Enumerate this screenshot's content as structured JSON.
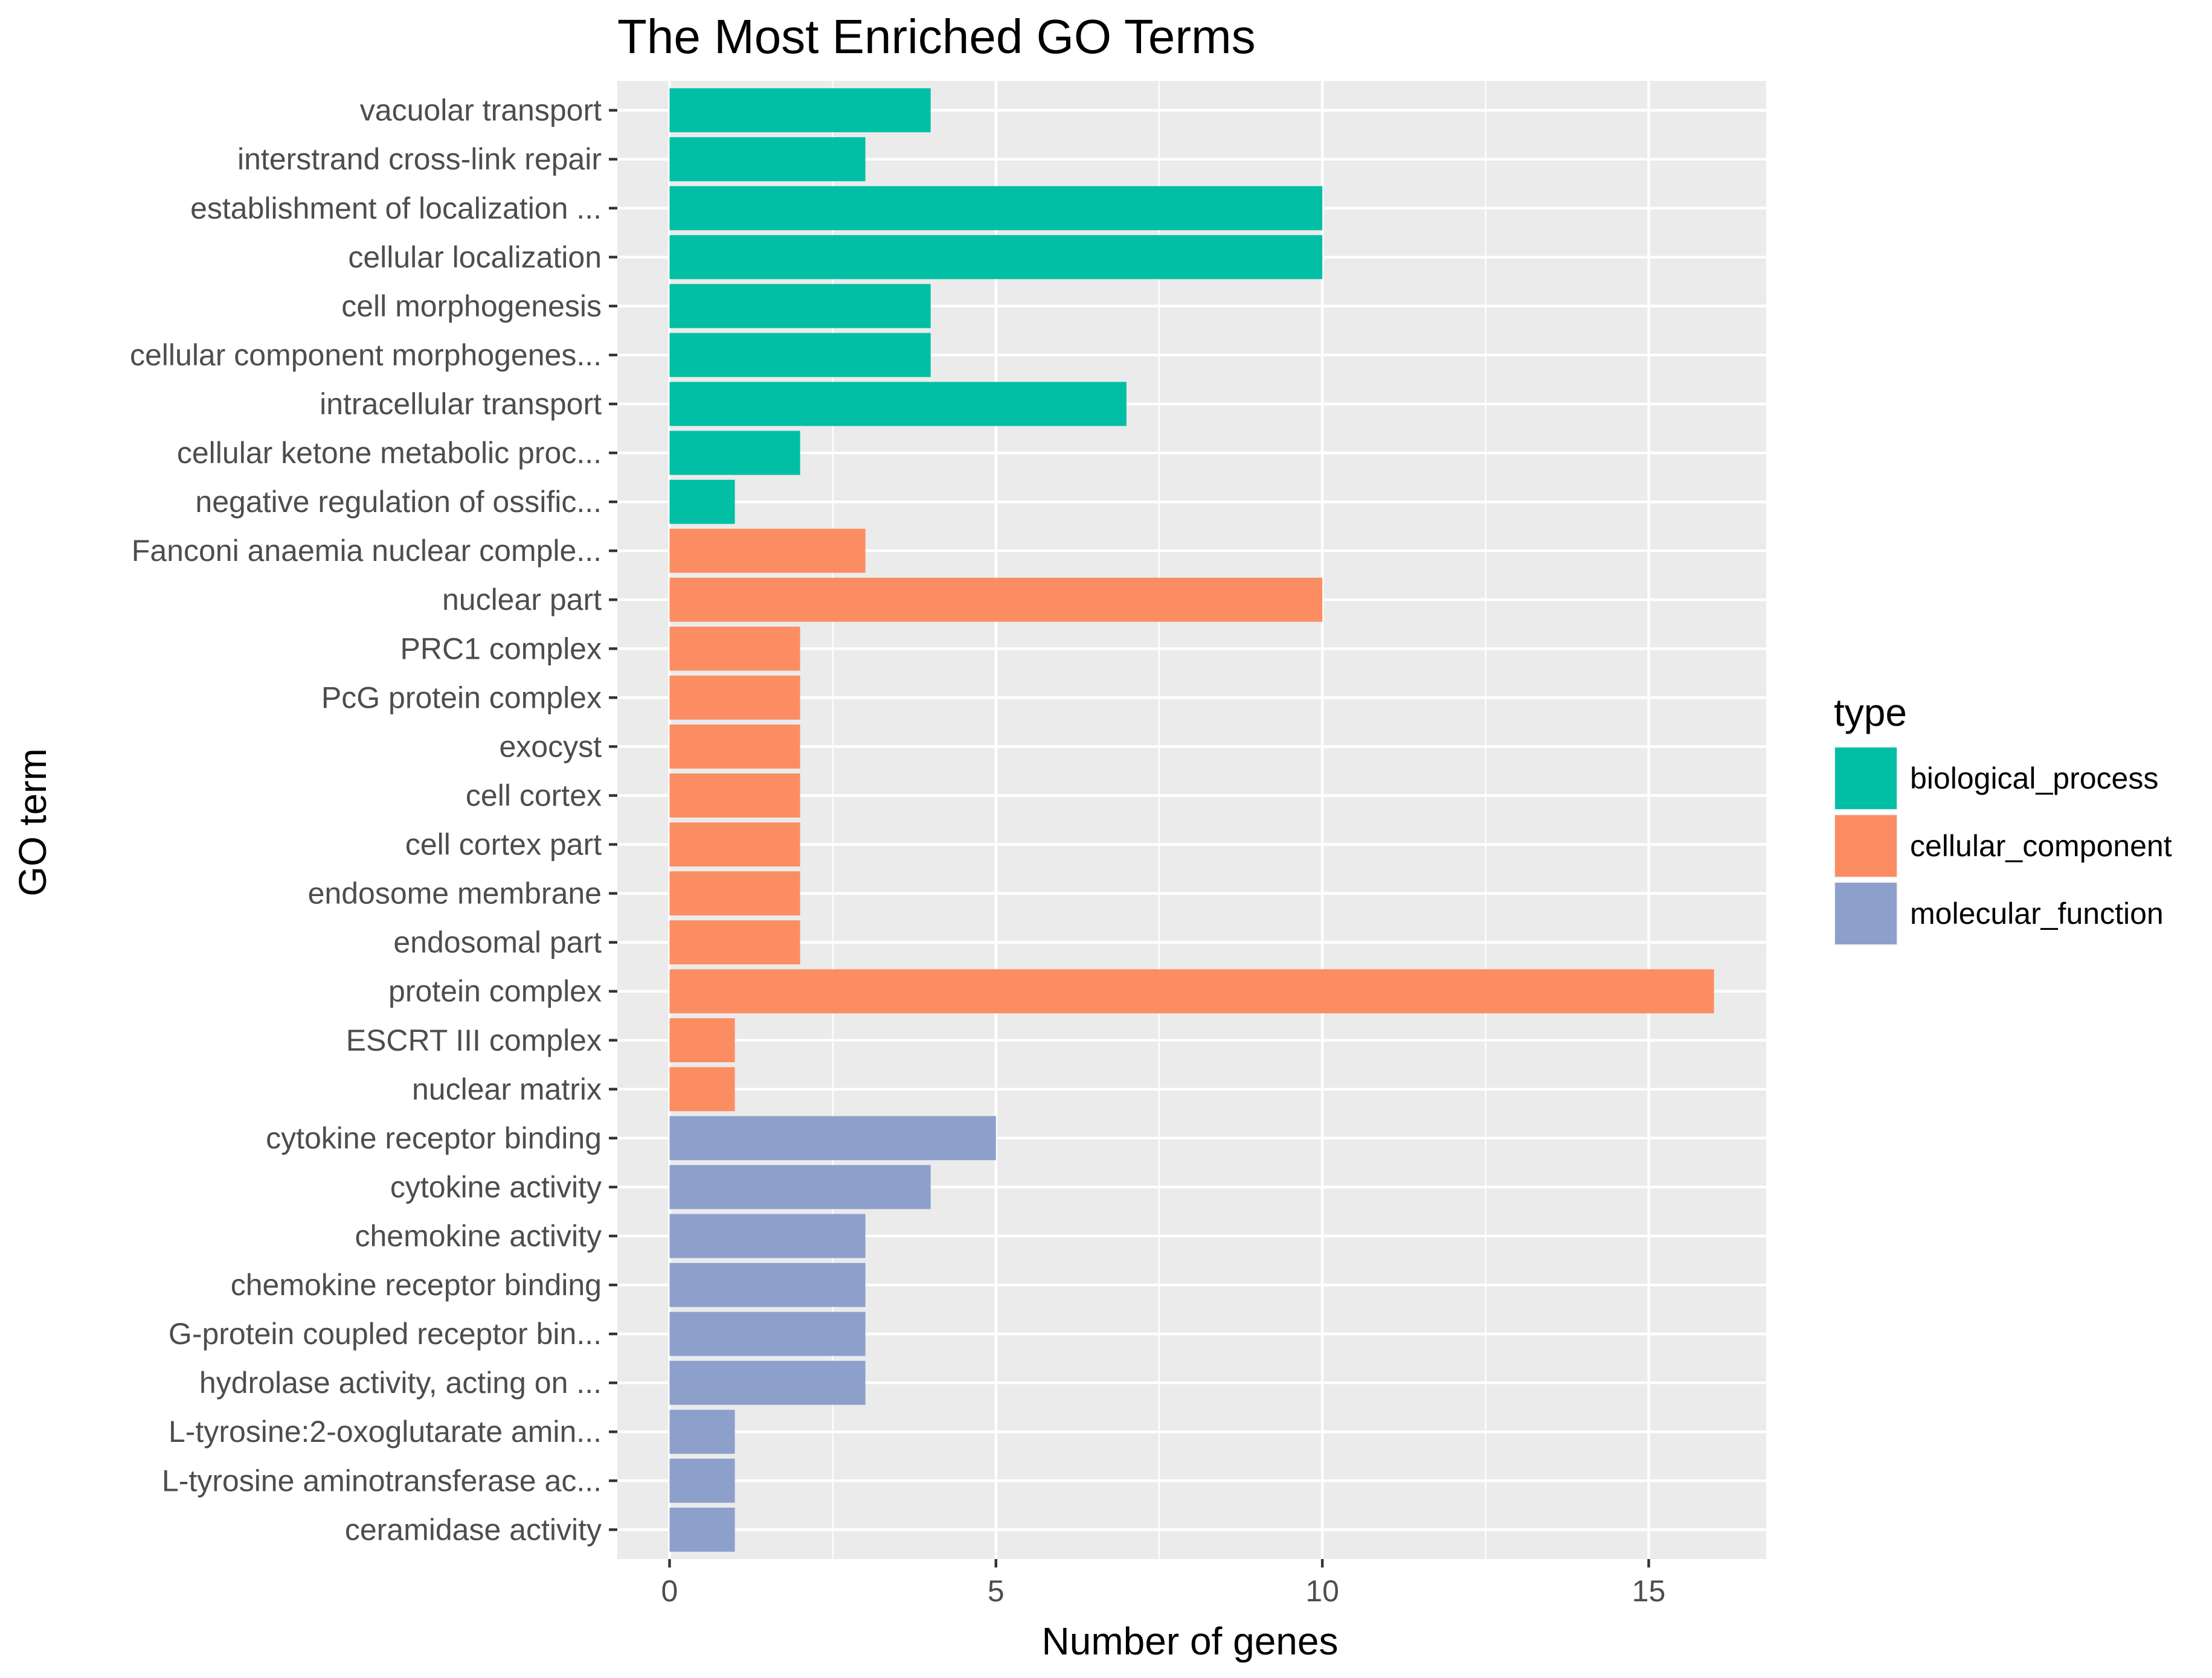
{
  "chart_data": {
    "type": "bar",
    "orientation": "horizontal",
    "title": "The Most Enriched GO Terms",
    "xlabel": "Number of genes",
    "ylabel": "GO term",
    "xlim": [
      -0.8,
      16.8
    ],
    "x_ticks": [
      0,
      5,
      10,
      15
    ],
    "x_tick_labels": [
      "0",
      "5",
      "10",
      "15"
    ],
    "grid": true,
    "legend": {
      "title": "type",
      "placement": "right",
      "entries": [
        {
          "key": "biological_process",
          "label": "biological_process",
          "color": "#00BFA5"
        },
        {
          "key": "cellular_component",
          "label": "cellular_component",
          "color": "#FC8D62"
        },
        {
          "key": "molecular_function",
          "label": "molecular_function",
          "color": "#8DA0CB"
        }
      ]
    },
    "bars": [
      {
        "label": "vacuolar transport",
        "value": 4,
        "type": "biological_process"
      },
      {
        "label": "interstrand cross-link repair",
        "value": 3,
        "type": "biological_process"
      },
      {
        "label": "establishment of localization ...",
        "value": 10,
        "type": "biological_process"
      },
      {
        "label": "cellular localization",
        "value": 10,
        "type": "biological_process"
      },
      {
        "label": "cell morphogenesis",
        "value": 4,
        "type": "biological_process"
      },
      {
        "label": "cellular component morphogenes...",
        "value": 4,
        "type": "biological_process"
      },
      {
        "label": "intracellular transport",
        "value": 7,
        "type": "biological_process"
      },
      {
        "label": "cellular ketone metabolic proc...",
        "value": 2,
        "type": "biological_process"
      },
      {
        "label": "negative regulation of ossific...",
        "value": 1,
        "type": "biological_process"
      },
      {
        "label": "Fanconi anaemia nuclear comple...",
        "value": 3,
        "type": "cellular_component"
      },
      {
        "label": "nuclear part",
        "value": 10,
        "type": "cellular_component"
      },
      {
        "label": "PRC1 complex",
        "value": 2,
        "type": "cellular_component"
      },
      {
        "label": "PcG protein complex",
        "value": 2,
        "type": "cellular_component"
      },
      {
        "label": "exocyst",
        "value": 2,
        "type": "cellular_component"
      },
      {
        "label": "cell cortex",
        "value": 2,
        "type": "cellular_component"
      },
      {
        "label": "cell cortex part",
        "value": 2,
        "type": "cellular_component"
      },
      {
        "label": "endosome membrane",
        "value": 2,
        "type": "cellular_component"
      },
      {
        "label": "endosomal part",
        "value": 2,
        "type": "cellular_component"
      },
      {
        "label": "protein complex",
        "value": 16,
        "type": "cellular_component"
      },
      {
        "label": "ESCRT III complex",
        "value": 1,
        "type": "cellular_component"
      },
      {
        "label": "nuclear matrix",
        "value": 1,
        "type": "cellular_component"
      },
      {
        "label": "cytokine receptor binding",
        "value": 5,
        "type": "molecular_function"
      },
      {
        "label": "cytokine activity",
        "value": 4,
        "type": "molecular_function"
      },
      {
        "label": "chemokine activity",
        "value": 3,
        "type": "molecular_function"
      },
      {
        "label": "chemokine receptor binding",
        "value": 3,
        "type": "molecular_function"
      },
      {
        "label": "G-protein coupled receptor bin...",
        "value": 3,
        "type": "molecular_function"
      },
      {
        "label": "hydrolase activity, acting on ...",
        "value": 3,
        "type": "molecular_function"
      },
      {
        "label": "L-tyrosine:2-oxoglutarate amin...",
        "value": 1,
        "type": "molecular_function"
      },
      {
        "label": "L-tyrosine aminotransferase ac...",
        "value": 1,
        "type": "molecular_function"
      },
      {
        "label": "ceramidase activity",
        "value": 1,
        "type": "molecular_function"
      }
    ],
    "colors": {
      "panel_background": "#EBEBEB",
      "grid": "#FFFFFF",
      "tick": "#333333",
      "tick_label": "#4D4D4D"
    }
  }
}
